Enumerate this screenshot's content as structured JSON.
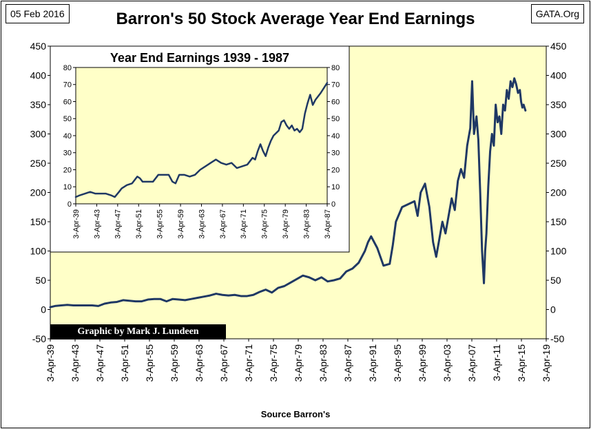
{
  "header": {
    "date": "05 Feb 2016",
    "source": "GATA.Org",
    "credit": "Graphic by Mark J. Lundeen"
  },
  "chart_data": [
    {
      "type": "line",
      "title": "Barron's 50 Stock Average Year End Earnings",
      "xlabel": "Source Barron's",
      "ylabel": "",
      "ylim": [
        -50,
        450
      ],
      "y_ticks": [
        -50,
        0,
        50,
        100,
        150,
        200,
        250,
        300,
        350,
        400,
        450
      ],
      "x_tick_labels": [
        "3-Apr-39",
        "3-Apr-43",
        "3-Apr-47",
        "3-Apr-51",
        "3-Apr-55",
        "3-Apr-59",
        "3-Apr-63",
        "3-Apr-67",
        "3-Apr-71",
        "3-Apr-75",
        "3-Apr-79",
        "3-Apr-83",
        "3-Apr-87",
        "3-Apr-91",
        "3-Apr-95",
        "3-Apr-99",
        "3-Apr-03",
        "3-Apr-07",
        "3-Apr-11",
        "3-Apr-15",
        "3-Apr-19"
      ],
      "xlim": [
        1939.25,
        2019.25
      ],
      "grid": false,
      "series": [
        {
          "color": "#1f3864",
          "x": [
            1939.25,
            1940,
            1941,
            1942,
            1943,
            1944,
            1945,
            1946,
            1947,
            1948,
            1949,
            1950,
            1951,
            1952,
            1953,
            1954,
            1955,
            1956,
            1957,
            1958,
            1959,
            1960,
            1961,
            1962,
            1963,
            1964,
            1965,
            1966,
            1967,
            1968,
            1969,
            1970,
            1971,
            1972,
            1973,
            1974,
            1975,
            1976,
            1977,
            1978,
            1979,
            1980,
            1981,
            1982,
            1983,
            1984,
            1985,
            1986,
            1987,
            1988,
            1989,
            1990,
            1990.5,
            1991,
            1992,
            1993,
            1994,
            1994.5,
            1995,
            1996,
            1997,
            1998,
            1998.5,
            1999,
            1999.7,
            2000.4,
            2001,
            2001.5,
            2002,
            2002.5,
            2003,
            2003.5,
            2004,
            2004.5,
            2005,
            2005.5,
            2006,
            2006.5,
            2007,
            2007.3,
            2007.6,
            2008,
            2008.3,
            2008.6,
            2008.9,
            2009.2,
            2009.4,
            2009.6,
            2009.9,
            2010.2,
            2010.5,
            2010.8,
            2011.1,
            2011.4,
            2011.7,
            2012,
            2012.3,
            2012.6,
            2012.9,
            2013.2,
            2013.5,
            2013.8,
            2014.1,
            2014.4,
            2014.7,
            2015,
            2015.2,
            2015.4,
            2015.6,
            2015.9
          ],
          "values": [
            4,
            6,
            7,
            8,
            7,
            7,
            7,
            7,
            6,
            10,
            12,
            13,
            16,
            15,
            14,
            14,
            17,
            18,
            18,
            14,
            18,
            17,
            16,
            18,
            20,
            22,
            24,
            27,
            25,
            24,
            25,
            23,
            23,
            25,
            30,
            34,
            29,
            37,
            40,
            46,
            52,
            58,
            55,
            50,
            55,
            48,
            50,
            53,
            65,
            70,
            80,
            100,
            115,
            125,
            105,
            75,
            78,
            110,
            150,
            175,
            180,
            185,
            160,
            200,
            215,
            175,
            115,
            90,
            120,
            150,
            130,
            160,
            190,
            170,
            220,
            240,
            225,
            280,
            310,
            390,
            300,
            330,
            290,
            200,
            100,
            45,
            100,
            130,
            210,
            270,
            300,
            280,
            350,
            320,
            330,
            300,
            350,
            340,
            375,
            360,
            390,
            380,
            395,
            385,
            370,
            375,
            355,
            345,
            350,
            340
          ]
        }
      ]
    },
    {
      "type": "line",
      "title": "Year End Earnings 1939 - 1987",
      "xlabel": "",
      "ylabel": "",
      "ylim": [
        0,
        80
      ],
      "y_ticks": [
        0,
        10,
        20,
        30,
        40,
        50,
        60,
        70,
        80
      ],
      "x_tick_labels": [
        "3-Apr-39",
        "3-Apr-43",
        "3-Apr-47",
        "3-Apr-51",
        "3-Apr-55",
        "3-Apr-59",
        "3-Apr-63",
        "3-Apr-67",
        "3-Apr-71",
        "3-Apr-75",
        "3-Apr-79",
        "3-Apr-83",
        "3-Apr-87"
      ],
      "xlim": [
        1939.25,
        1987.25
      ],
      "grid": false,
      "series": [
        {
          "color": "#1f3864",
          "x": [
            1939.25,
            1940,
            1941,
            1942,
            1943,
            1944,
            1945,
            1946,
            1946.7,
            1947.5,
            1948,
            1949,
            1950,
            1951,
            1951.5,
            1952,
            1953,
            1954,
            1955,
            1956,
            1957,
            1957.7,
            1958.3,
            1959,
            1960,
            1961,
            1962,
            1963,
            1964,
            1965,
            1966,
            1967,
            1968,
            1969,
            1970,
            1971,
            1972,
            1973,
            1973.5,
            1974,
            1974.5,
            1975,
            1975.5,
            1976,
            1976.5,
            1977,
            1978,
            1978.5,
            1979,
            1979.5,
            1980,
            1980.5,
            1981,
            1981.5,
            1982,
            1982.5,
            1983,
            1983.5,
            1984,
            1984.5,
            1985,
            1986,
            1987.25
          ],
          "values": [
            4,
            5,
            6,
            7,
            6,
            6,
            6,
            5,
            4,
            7,
            9,
            11,
            12,
            16,
            15,
            13,
            13,
            13,
            17,
            17,
            17,
            13,
            12,
            17,
            17,
            16,
            17,
            20,
            22,
            24,
            26,
            24,
            23,
            24,
            21,
            22,
            23,
            27,
            26,
            31,
            35,
            31,
            28,
            33,
            37,
            40,
            43,
            48,
            49,
            46,
            44,
            46,
            43,
            44,
            42,
            44,
            53,
            59,
            64,
            58,
            61,
            65,
            71
          ]
        }
      ]
    }
  ]
}
